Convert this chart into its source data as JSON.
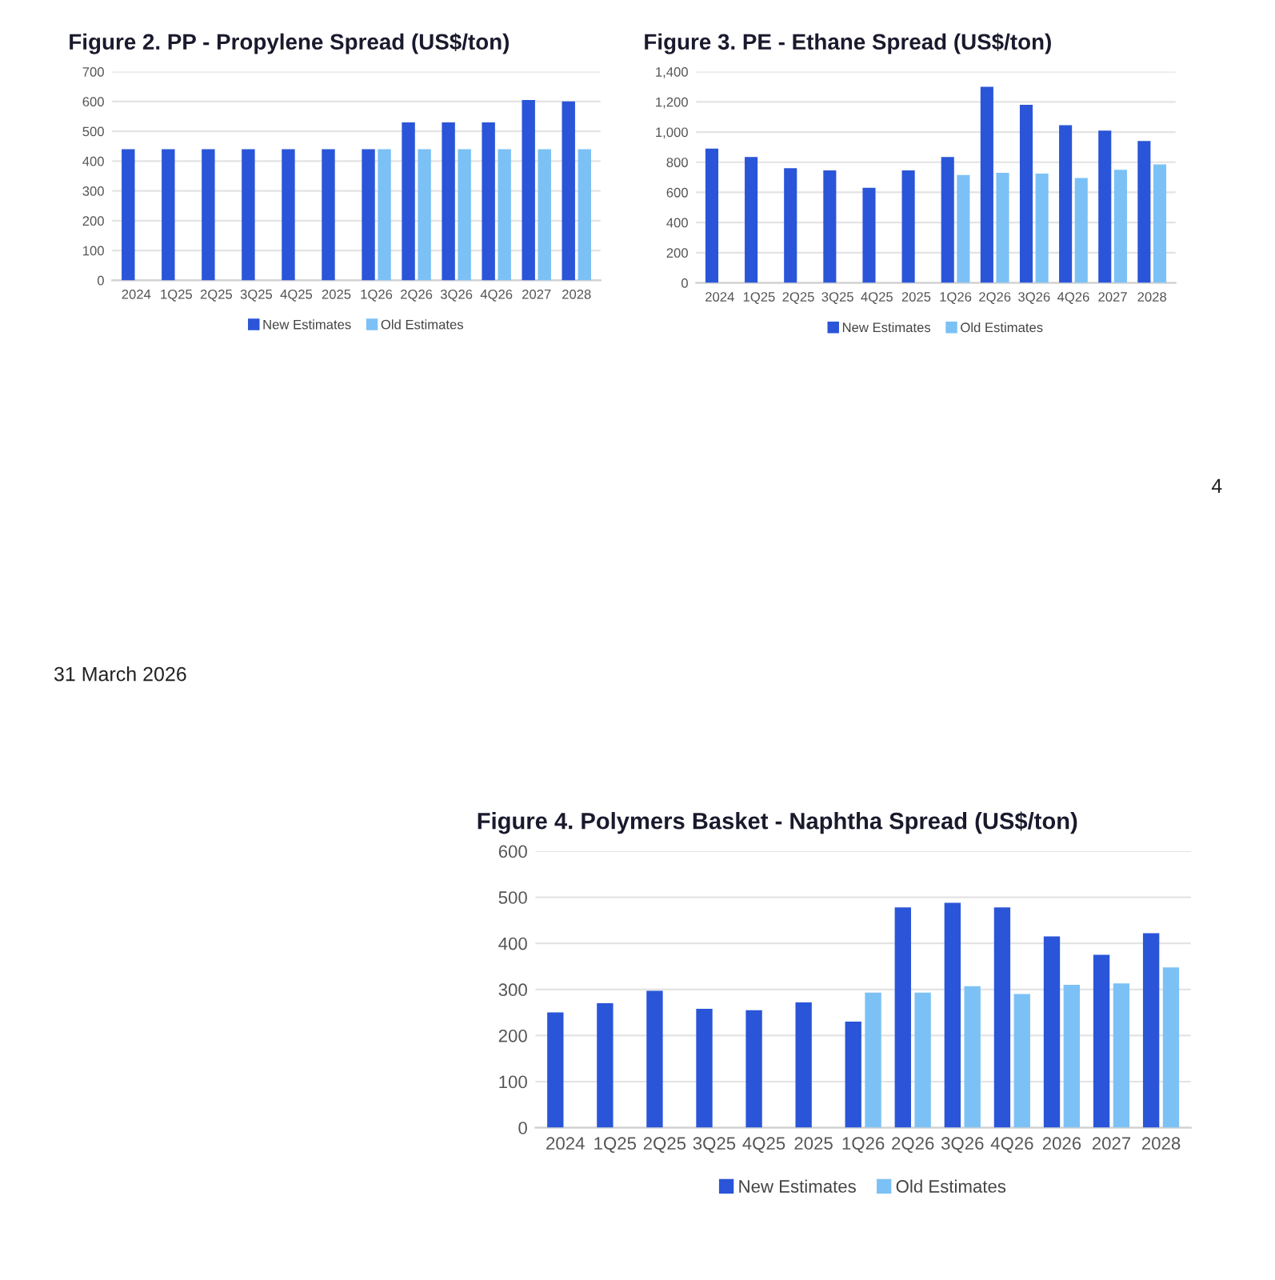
{
  "chart_data": [
    {
      "type": "bar",
      "title": "Figure 2. PP - Propylene Spread (US$/ton)",
      "categories": [
        "2024",
        "1Q25",
        "2Q25",
        "3Q25",
        "4Q25",
        "2025",
        "1Q26",
        "2Q26",
        "3Q26",
        "4Q26",
        "2027",
        "2028"
      ],
      "series": [
        {
          "name": "New Estimates",
          "color": "#2a55d8",
          "values": [
            440,
            440,
            440,
            440,
            440,
            440,
            440,
            530,
            530,
            530,
            605,
            600
          ]
        },
        {
          "name": "Old Estimates",
          "color": "#7cc1f5",
          "values": [
            null,
            null,
            null,
            null,
            null,
            null,
            440,
            440,
            440,
            440,
            440,
            440
          ]
        }
      ],
      "ylim": [
        0,
        700
      ],
      "yticks": [
        0,
        100,
        200,
        300,
        400,
        500,
        600,
        700
      ],
      "grid": "y",
      "legend": "bottom"
    },
    {
      "type": "bar",
      "title": "Figure 3. PE - Ethane Spread (US$/ton)",
      "categories": [
        "2024",
        "1Q25",
        "2Q25",
        "3Q25",
        "4Q25",
        "2025",
        "1Q26",
        "2Q26",
        "3Q26",
        "4Q26",
        "2027",
        "2028"
      ],
      "series": [
        {
          "name": "New Estimates",
          "color": "#2a55d8",
          "values": [
            890,
            835,
            760,
            745,
            630,
            745,
            835,
            1300,
            1180,
            1045,
            1010,
            940
          ]
        },
        {
          "name": "Old Estimates",
          "color": "#7cc1f5",
          "values": [
            null,
            null,
            null,
            null,
            null,
            null,
            715,
            730,
            725,
            695,
            750,
            785
          ]
        }
      ],
      "ylim": [
        0,
        1400
      ],
      "yticks": [
        0,
        {
          "value": 200,
          "label": "200"
        },
        {
          "value": 400,
          "label": "400"
        },
        {
          "value": 600,
          "label": "600"
        },
        {
          "value": 800,
          "label": "800"
        },
        {
          "value": 1000,
          "label": "1,000"
        },
        {
          "value": 1200,
          "label": "1,200"
        },
        {
          "value": 1400,
          "label": "1,400"
        }
      ],
      "grid": "y",
      "legend": "bottom",
      "annotations": [
        "4"
      ]
    },
    {
      "type": "bar",
      "title": "Figure 4. Polymers Basket - Naphtha Spread (US$/ton)",
      "categories": [
        "2024",
        "1Q25",
        "2Q25",
        "3Q25",
        "4Q25",
        "2025",
        "1Q26",
        "2Q26",
        "3Q26",
        "4Q26",
        "2026",
        "2027",
        "2028"
      ],
      "series": [
        {
          "name": "New Estimates",
          "color": "#2a55d8",
          "values": [
            250,
            270,
            297,
            258,
            255,
            272,
            230,
            478,
            488,
            478,
            415,
            375,
            422
          ]
        },
        {
          "name": "Old Estimates",
          "color": "#7cc1f5",
          "values": [
            null,
            null,
            null,
            null,
            null,
            null,
            293,
            293,
            307,
            290,
            310,
            313,
            348
          ]
        }
      ],
      "ylim": [
        0,
        600
      ],
      "yticks": [
        0,
        100,
        200,
        300,
        400,
        500,
        600
      ],
      "grid": "y",
      "legend": "bottom",
      "annotations": [
        "31 March 2026"
      ]
    }
  ]
}
